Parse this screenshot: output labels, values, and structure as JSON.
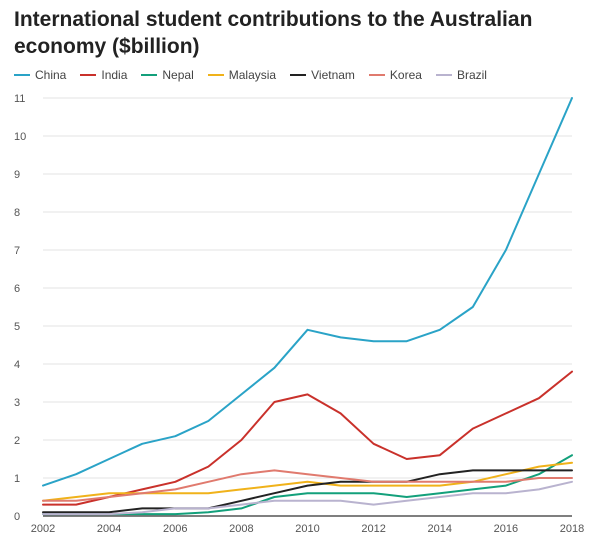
{
  "chart_data": {
    "type": "line",
    "title": "International student contributions to the Australian economy ($billion)",
    "xlabel": "",
    "ylabel": "",
    "x": [
      2002,
      2003,
      2004,
      2005,
      2006,
      2007,
      2008,
      2009,
      2010,
      2011,
      2012,
      2013,
      2014,
      2015,
      2016,
      2017,
      2018
    ],
    "x_ticks": [
      2002,
      2004,
      2006,
      2008,
      2010,
      2012,
      2014,
      2016,
      2018
    ],
    "y_ticks": [
      0,
      1,
      2,
      3,
      4,
      5,
      6,
      7,
      8,
      9,
      10,
      11
    ],
    "ylim": [
      0,
      11
    ],
    "grid": true,
    "legend_position": "top-left",
    "series": [
      {
        "name": "China",
        "color": "#2aa3c7",
        "values": [
          0.8,
          1.1,
          1.5,
          1.9,
          2.1,
          2.5,
          3.2,
          3.9,
          4.9,
          4.7,
          4.6,
          4.6,
          4.9,
          5.5,
          7.0,
          9.0,
          11.0
        ]
      },
      {
        "name": "India",
        "color": "#c9312b",
        "values": [
          0.3,
          0.3,
          0.5,
          0.7,
          0.9,
          1.3,
          2.0,
          3.0,
          3.2,
          2.7,
          1.9,
          1.5,
          1.6,
          2.3,
          2.7,
          3.1,
          3.8
        ]
      },
      {
        "name": "Nepal",
        "color": "#13a07b",
        "values": [
          0.05,
          0.05,
          0.05,
          0.05,
          0.05,
          0.1,
          0.2,
          0.5,
          0.6,
          0.6,
          0.6,
          0.5,
          0.6,
          0.7,
          0.8,
          1.1,
          1.6
        ]
      },
      {
        "name": "Malaysia",
        "color": "#f0b21a",
        "values": [
          0.4,
          0.5,
          0.6,
          0.6,
          0.6,
          0.6,
          0.7,
          0.8,
          0.9,
          0.8,
          0.8,
          0.8,
          0.8,
          0.9,
          1.1,
          1.3,
          1.4
        ]
      },
      {
        "name": "Vietnam",
        "color": "#222222",
        "values": [
          0.1,
          0.1,
          0.1,
          0.2,
          0.2,
          0.2,
          0.4,
          0.6,
          0.8,
          0.9,
          0.9,
          0.9,
          1.1,
          1.2,
          1.2,
          1.2,
          1.2
        ]
      },
      {
        "name": "Korea",
        "color": "#e07a6e",
        "values": [
          0.4,
          0.4,
          0.5,
          0.6,
          0.7,
          0.9,
          1.1,
          1.2,
          1.1,
          1.0,
          0.9,
          0.9,
          0.9,
          0.9,
          0.9,
          1.0,
          1.0
        ]
      },
      {
        "name": "Brazil",
        "color": "#b9b3cf",
        "values": [
          0.05,
          0.05,
          0.05,
          0.1,
          0.2,
          0.2,
          0.3,
          0.4,
          0.4,
          0.4,
          0.3,
          0.4,
          0.5,
          0.6,
          0.6,
          0.7,
          0.9
        ]
      }
    ]
  }
}
